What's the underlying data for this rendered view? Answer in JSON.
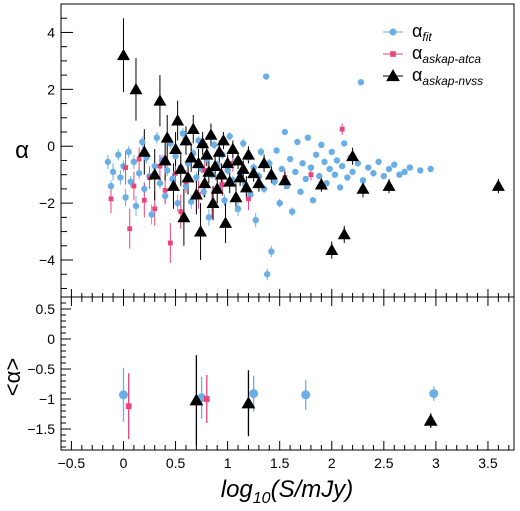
{
  "chart_data": [
    {
      "type": "scatter",
      "panel": "top",
      "title": "",
      "xlabel": "",
      "ylabel": "α",
      "xlim": [
        -0.6,
        3.75
      ],
      "ylim": [
        -5.3,
        5.0
      ],
      "y_ticks": [
        "4",
        "2",
        "0",
        "−2",
        "−4"
      ],
      "y_tick_values": [
        4,
        2,
        0,
        -2,
        -4
      ],
      "grid": false,
      "legend_position": "top-right",
      "series": [
        {
          "name_main": "α",
          "name_sub": "fit",
          "color": "#6aaee6",
          "marker": "circle",
          "points": [
            [
              -0.15,
              -0.55,
              0.25
            ],
            [
              -0.12,
              -1.4,
              0.2
            ],
            [
              -0.1,
              -0.9,
              0.3
            ],
            [
              -0.05,
              -0.3,
              0.2
            ],
            [
              -0.03,
              -1.1,
              0.25
            ],
            [
              0.0,
              -0.7,
              0.2
            ],
            [
              0.02,
              -1.8,
              0.3
            ],
            [
              0.05,
              -0.2,
              0.2
            ],
            [
              0.07,
              -1.25,
              0.2
            ],
            [
              0.1,
              -0.55,
              0.25
            ],
            [
              0.12,
              -2.1,
              0.35
            ],
            [
              0.15,
              -0.95,
              0.2
            ],
            [
              0.18,
              0.15,
              0.2
            ],
            [
              0.2,
              -1.5,
              0.25
            ],
            [
              0.22,
              -0.4,
              0.2
            ],
            [
              0.25,
              -1.05,
              0.2
            ],
            [
              0.27,
              -2.4,
              0.35
            ],
            [
              0.3,
              -0.7,
              0.2
            ],
            [
              0.32,
              0.3,
              0.2
            ],
            [
              0.35,
              -1.3,
              0.2
            ],
            [
              0.37,
              -0.5,
              0.2
            ],
            [
              0.4,
              -1.75,
              0.25
            ],
            [
              0.42,
              -0.85,
              0.2
            ],
            [
              0.45,
              0.1,
              0.2
            ],
            [
              0.47,
              -1.15,
              0.2
            ],
            [
              0.5,
              -0.35,
              0.2
            ],
            [
              0.52,
              -2.0,
              0.3
            ],
            [
              0.55,
              -0.75,
              0.2
            ],
            [
              0.57,
              0.45,
              0.2
            ],
            [
              0.6,
              -1.4,
              0.2
            ],
            [
              0.62,
              -0.6,
              0.2
            ],
            [
              0.65,
              -1.95,
              0.25
            ],
            [
              0.67,
              -0.25,
              0.15
            ],
            [
              0.7,
              -1.1,
              0.2
            ],
            [
              0.72,
              0.2,
              0.15
            ],
            [
              0.75,
              -0.8,
              0.15
            ],
            [
              0.77,
              -1.6,
              0.2
            ],
            [
              0.8,
              -0.45,
              0.15
            ],
            [
              0.82,
              -2.5,
              0.3
            ],
            [
              0.85,
              -1.0,
              0.15
            ],
            [
              0.87,
              0.05,
              0.15
            ],
            [
              0.9,
              -0.65,
              0.15
            ],
            [
              0.92,
              -1.45,
              0.2
            ],
            [
              0.95,
              -0.3,
              0.15
            ],
            [
              0.97,
              -1.9,
              0.2
            ],
            [
              1.0,
              -0.85,
              0.15
            ],
            [
              1.02,
              0.35,
              0.15
            ],
            [
              1.05,
              -1.2,
              0.15
            ],
            [
              1.07,
              -0.55,
              0.15
            ],
            [
              1.1,
              -2.2,
              0.25
            ],
            [
              1.12,
              -0.95,
              0.15
            ],
            [
              1.15,
              0.1,
              0.15
            ],
            [
              1.17,
              -1.35,
              0.15
            ],
            [
              1.2,
              -0.4,
              0.15
            ],
            [
              1.22,
              -1.7,
              0.2
            ],
            [
              1.25,
              -0.75,
              0.15
            ],
            [
              1.27,
              -2.6,
              0.25
            ],
            [
              1.3,
              -1.05,
              0.15
            ],
            [
              1.32,
              -0.2,
              0.15
            ],
            [
              1.35,
              -1.5,
              0.15
            ],
            [
              1.37,
              2.45,
              0.1
            ],
            [
              1.38,
              -4.5,
              0.2
            ],
            [
              1.4,
              -0.6,
              0.15
            ],
            [
              1.42,
              -3.7,
              0.2
            ],
            [
              1.45,
              -1.25,
              0.15
            ],
            [
              1.47,
              -0.15,
              0.1
            ],
            [
              1.5,
              -2.0,
              0.15
            ],
            [
              1.52,
              -0.8,
              0.1
            ],
            [
              1.55,
              0.5,
              0.1
            ],
            [
              1.57,
              -1.4,
              0.1
            ],
            [
              1.6,
              -0.45,
              0.1
            ],
            [
              1.62,
              -2.3,
              0.15
            ],
            [
              1.65,
              -0.9,
              0.1
            ],
            [
              1.67,
              0.15,
              0.1
            ],
            [
              1.7,
              -1.6,
              0.1
            ],
            [
              1.72,
              -0.6,
              0.1
            ],
            [
              1.75,
              -1.15,
              0.1
            ],
            [
              1.77,
              0.3,
              0.1
            ],
            [
              1.8,
              -0.75,
              0.1
            ],
            [
              1.82,
              -1.9,
              0.1
            ],
            [
              1.85,
              -0.3,
              0.1
            ],
            [
              1.88,
              -1.05,
              0.1
            ],
            [
              1.9,
              0.05,
              0.1
            ],
            [
              1.93,
              -0.55,
              0.1
            ],
            [
              1.95,
              -1.3,
              0.1
            ],
            [
              1.98,
              -0.8,
              0.1
            ],
            [
              2.0,
              -0.2,
              0.1
            ],
            [
              2.03,
              -1.0,
              0.1
            ],
            [
              2.05,
              -0.5,
              0.1
            ],
            [
              2.08,
              -1.45,
              0.1
            ],
            [
              2.1,
              -0.7,
              0.1
            ],
            [
              2.12,
              0.1,
              0.1
            ],
            [
              2.15,
              -1.1,
              0.1
            ],
            [
              2.18,
              -0.4,
              0.1
            ],
            [
              2.2,
              -0.9,
              0.1
            ],
            [
              2.25,
              -0.6,
              0.1
            ],
            [
              2.28,
              2.25,
              0.1
            ],
            [
              2.3,
              -1.2,
              0.1
            ],
            [
              2.35,
              -0.75,
              0.1
            ],
            [
              2.4,
              -0.95,
              0.1
            ],
            [
              2.45,
              -0.55,
              0.1
            ],
            [
              2.5,
              -1.05,
              0.1
            ],
            [
              2.55,
              -0.8,
              0.1
            ],
            [
              2.6,
              -0.65,
              0.1
            ],
            [
              2.65,
              -1.0,
              0.1
            ],
            [
              2.7,
              -0.9,
              0.1
            ],
            [
              2.75,
              -0.75,
              0.1
            ],
            [
              2.85,
              -0.85,
              0.1
            ],
            [
              2.95,
              -0.8,
              0.1
            ]
          ]
        },
        {
          "name_main": "α",
          "name_sub": "askap-atca",
          "color": "#e8457a",
          "marker": "square",
          "points": [
            [
              -0.12,
              -1.85,
              0.5
            ],
            [
              0.02,
              -0.75,
              0.6
            ],
            [
              0.06,
              -2.9,
              0.7
            ],
            [
              0.1,
              -1.4,
              0.5
            ],
            [
              0.15,
              -0.45,
              0.4
            ],
            [
              0.2,
              -1.9,
              0.6
            ],
            [
              0.25,
              -1.1,
              0.4
            ],
            [
              0.3,
              -2.2,
              0.6
            ],
            [
              0.35,
              -0.7,
              0.4
            ],
            [
              0.4,
              -1.55,
              0.5
            ],
            [
              0.45,
              -3.4,
              0.7
            ],
            [
              0.5,
              -0.95,
              0.4
            ],
            [
              0.55,
              -2.3,
              0.6
            ],
            [
              0.6,
              -1.25,
              0.4
            ],
            [
              0.65,
              -0.35,
              0.3
            ],
            [
              0.72,
              -1.7,
              0.5
            ],
            [
              0.78,
              -0.85,
              0.4
            ],
            [
              0.85,
              -2.05,
              0.5
            ],
            [
              0.95,
              -1.35,
              0.4
            ],
            [
              1.05,
              -0.6,
              0.3
            ],
            [
              1.2,
              -1.85,
              0.4
            ],
            [
              1.55,
              -1.1,
              0.3
            ],
            [
              1.8,
              -1.0,
              0.2
            ],
            [
              2.1,
              0.6,
              0.2
            ]
          ]
        },
        {
          "name_main": "α",
          "name_sub": "askap-nvss",
          "color": "#000000",
          "marker": "triangle",
          "points": [
            [
              0.0,
              3.2,
              1.3
            ],
            [
              0.12,
              2.0,
              1.1
            ],
            [
              0.2,
              -0.2,
              0.8
            ],
            [
              0.3,
              -1.0,
              0.9
            ],
            [
              0.35,
              1.6,
              0.9
            ],
            [
              0.4,
              -0.5,
              0.7
            ],
            [
              0.42,
              0.3,
              0.8
            ],
            [
              0.48,
              -1.4,
              0.8
            ],
            [
              0.5,
              -0.1,
              0.6
            ],
            [
              0.52,
              0.9,
              0.7
            ],
            [
              0.55,
              -0.8,
              0.6
            ],
            [
              0.58,
              -2.5,
              1.0
            ],
            [
              0.6,
              0.2,
              0.5
            ],
            [
              0.62,
              -1.1,
              0.6
            ],
            [
              0.65,
              -0.4,
              0.5
            ],
            [
              0.67,
              0.6,
              0.5
            ],
            [
              0.7,
              -1.7,
              0.7
            ],
            [
              0.72,
              -0.6,
              0.5
            ],
            [
              0.74,
              -3.0,
              1.0
            ],
            [
              0.76,
              0.1,
              0.4
            ],
            [
              0.78,
              -1.3,
              0.5
            ],
            [
              0.8,
              -0.3,
              0.4
            ],
            [
              0.82,
              -0.9,
              0.4
            ],
            [
              0.84,
              0.4,
              0.4
            ],
            [
              0.86,
              -2.0,
              0.6
            ],
            [
              0.88,
              -0.7,
              0.4
            ],
            [
              0.9,
              -1.5,
              0.5
            ],
            [
              0.92,
              -0.2,
              0.4
            ],
            [
              0.94,
              -1.0,
              0.4
            ],
            [
              0.96,
              0.2,
              0.3
            ],
            [
              0.98,
              -2.7,
              0.7
            ],
            [
              1.0,
              -0.6,
              0.3
            ],
            [
              1.02,
              -1.25,
              0.4
            ],
            [
              1.05,
              -0.1,
              0.3
            ],
            [
              1.08,
              -1.8,
              0.5
            ],
            [
              1.1,
              -0.5,
              0.3
            ],
            [
              1.12,
              -1.1,
              0.3
            ],
            [
              1.15,
              -0.8,
              0.3
            ],
            [
              1.18,
              -1.45,
              0.4
            ],
            [
              1.2,
              -0.3,
              0.3
            ],
            [
              1.25,
              -0.95,
              0.3
            ],
            [
              1.3,
              -1.3,
              0.3
            ],
            [
              1.35,
              -0.6,
              0.3
            ],
            [
              1.42,
              -1.0,
              0.3
            ],
            [
              1.55,
              -1.2,
              0.3
            ],
            [
              1.9,
              -1.35,
              0.25
            ],
            [
              2.0,
              -3.65,
              0.3
            ],
            [
              2.12,
              -3.1,
              0.3
            ],
            [
              2.2,
              -0.35,
              0.3
            ],
            [
              2.3,
              -1.5,
              0.3
            ],
            [
              2.55,
              -1.4,
              0.25
            ],
            [
              3.6,
              -1.4,
              0.25
            ]
          ]
        }
      ]
    },
    {
      "type": "scatter",
      "panel": "bottom",
      "title": "",
      "xlabel": "log₁₀(S/mJy)",
      "ylabel": "<α>",
      "xlim": [
        -0.6,
        3.75
      ],
      "ylim": [
        -1.85,
        0.7
      ],
      "x_ticks": [
        "−0.5",
        "0",
        "0.5",
        "1",
        "1.5",
        "2",
        "2.5",
        "3",
        "3.5"
      ],
      "x_tick_values": [
        -0.5,
        0,
        0.5,
        1,
        1.5,
        2,
        2.5,
        3,
        3.5
      ],
      "y_ticks": [
        "0.5",
        "0",
        "−0.5",
        "−1",
        "−1.5"
      ],
      "y_tick_values": [
        0.5,
        0,
        -0.5,
        -1,
        -1.5
      ],
      "series": [
        {
          "name": "α_fit",
          "color": "#6aaee6",
          "marker": "circle",
          "points": [
            [
              0.0,
              -0.93,
              0.45
            ],
            [
              0.75,
              -0.98,
              0.35
            ],
            [
              1.25,
              -0.91,
              0.3
            ],
            [
              1.75,
              -0.93,
              0.25
            ],
            [
              2.98,
              -0.91,
              0.12
            ]
          ]
        },
        {
          "name": "α_askap-atca",
          "color": "#e8457a",
          "marker": "square",
          "points": [
            [
              0.05,
              -1.12,
              0.55
            ],
            [
              0.8,
              -1.0,
              0.4
            ]
          ]
        },
        {
          "name": "α_askap-nvss",
          "color": "#000000",
          "marker": "triangle",
          "points": [
            [
              0.7,
              -1.02,
              0.75
            ],
            [
              1.2,
              -1.07,
              0.55
            ],
            [
              2.95,
              -1.36,
              0.12
            ]
          ]
        }
      ]
    }
  ]
}
